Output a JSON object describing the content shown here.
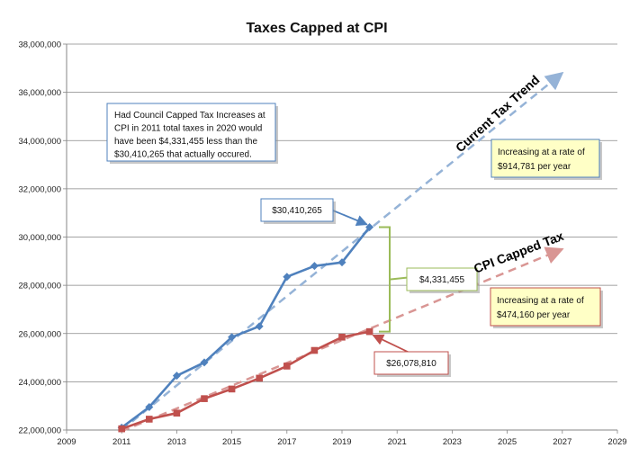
{
  "chart_data": {
    "type": "line",
    "title": "Taxes Capped at CPI",
    "xlim": [
      2009,
      2029
    ],
    "ylim": [
      22000000,
      38000000
    ],
    "x_ticks": [
      "2009",
      "2011",
      "2013",
      "2015",
      "2017",
      "2019",
      "2021",
      "2023",
      "2025",
      "2027",
      "2029"
    ],
    "y_ticks": [
      "22,000,000",
      "24,000,000",
      "26,000,000",
      "28,000,000",
      "30,000,000",
      "32,000,000",
      "34,000,000",
      "36,000,000",
      "38,000,000"
    ],
    "grid": "horizontal",
    "series": [
      {
        "name": "Current Tax Trend",
        "color": "#4f81bd",
        "marker": "diamond",
        "x": [
          2011,
          2012,
          2013,
          2014,
          2015,
          2016,
          2017,
          2018,
          2019,
          2020
        ],
        "y": [
          22100000,
          22950000,
          24250000,
          24800000,
          25850000,
          26300000,
          28350000,
          28800000,
          28950000,
          30410265
        ]
      },
      {
        "name": "CPI Capped Tax",
        "color": "#c0504d",
        "marker": "square",
        "x": [
          2011,
          2012,
          2013,
          2014,
          2015,
          2016,
          2017,
          2018,
          2019,
          2020
        ],
        "y": [
          22050000,
          22450000,
          22700000,
          23300000,
          23700000,
          24150000,
          24650000,
          25300000,
          25850000,
          26078810
        ]
      }
    ],
    "trendlines": [
      {
        "series": "Current Tax Trend",
        "color": "#95b3d7",
        "x": [
          2011,
          2027
        ],
        "y": [
          22000000,
          36800000
        ]
      },
      {
        "series": "CPI Capped Tax",
        "color": "#d99694",
        "x": [
          2011,
          2027
        ],
        "y": [
          21950000,
          29500000
        ]
      }
    ],
    "annotations": {
      "note_lines": [
        "Had Council Capped Tax Increases at",
        "CPI in 2011 total taxes in 2020 would",
        "have been $4,331,455 less than the",
        "$30,410,265 that actually occured."
      ],
      "current_value": "$30,410,265",
      "capped_value": "$26,078,810",
      "difference": "$4,331,455",
      "current_rate": [
        "Increasing at a rate of",
        "$914,781  per year"
      ],
      "capped_rate": [
        "Increasing at a rate of",
        "$474,160  per year"
      ],
      "current_trend_label": "Current Tax Trend",
      "capped_trend_label": "CPI Capped Tax"
    }
  }
}
